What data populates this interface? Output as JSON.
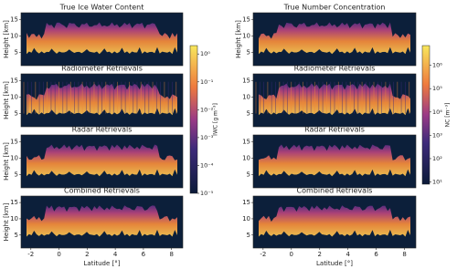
{
  "chart_data": [
    {
      "type": "heatmap",
      "title": "True Ice Water Content",
      "ylabel": "Height [km]",
      "xlim": [
        -2.7,
        8.8
      ],
      "ylim": [
        1,
        17
      ],
      "yticks": [
        5,
        10,
        15
      ]
    },
    {
      "type": "heatmap",
      "title": "True Number Concentration",
      "ylabel": "Height [km]",
      "xlim": [
        -2.7,
        8.8
      ],
      "ylim": [
        1,
        17
      ],
      "yticks": [
        5,
        10,
        15
      ]
    },
    {
      "type": "heatmap",
      "title": "Radiometer Retrievals",
      "ylabel": "Height [km]",
      "xlim": [
        -2.7,
        8.8
      ],
      "ylim": [
        1,
        17
      ],
      "yticks": [
        5,
        10,
        15
      ],
      "noise": true
    },
    {
      "type": "heatmap",
      "title": "Radiometer Retrievals",
      "xlim": [
        -2.7,
        8.8
      ],
      "ylim": [
        1,
        17
      ],
      "yticks": [
        5,
        10,
        15
      ],
      "noise": true
    },
    {
      "type": "heatmap",
      "title": "Radar Retrievals",
      "ylabel": "Height [km]",
      "xlim": [
        -2.7,
        8.8
      ],
      "ylim": [
        1,
        17
      ],
      "yticks": [
        5,
        10,
        15
      ]
    },
    {
      "type": "heatmap",
      "title": "Radar Retrievals",
      "xlim": [
        -2.7,
        8.8
      ],
      "ylim": [
        1,
        17
      ],
      "yticks": [
        5,
        10,
        15
      ]
    },
    {
      "type": "heatmap",
      "title": "Combined Retrievals",
      "ylabel": "Height [km]",
      "xlabel": "Latitude [°]",
      "xlim": [
        -2.7,
        8.8
      ],
      "ylim": [
        1,
        17
      ],
      "yticks": [
        5,
        10,
        15
      ],
      "xticks": [
        -2,
        0,
        2,
        4,
        6,
        8
      ]
    },
    {
      "type": "heatmap",
      "title": "Combined Retrievals",
      "xlabel": "Latitude [°]",
      "xlim": [
        -2.7,
        8.8
      ],
      "ylim": [
        1,
        17
      ],
      "yticks": [
        5,
        10,
        15
      ],
      "xticks": [
        -2,
        0,
        2,
        4,
        6,
        8
      ]
    },
    {
      "type": "colorbar",
      "label": "IWC [g m⁻³]",
      "log": true,
      "ylim": [
        1e-05,
        2
      ],
      "yticks": [
        {
          "value": 1e-05,
          "label": "10⁻⁵"
        },
        {
          "value": 0.0001,
          "label": "10⁻⁴"
        },
        {
          "value": 0.001,
          "label": "10⁻³"
        },
        {
          "value": 0.01,
          "label": "10⁻²"
        },
        {
          "value": 0.1,
          "label": "10⁻¹"
        },
        {
          "value": 1,
          "label": "10⁰"
        }
      ]
    },
    {
      "type": "colorbar",
      "label": "NC [m⁻³]",
      "log": true,
      "ylim": [
        8,
        7000000
      ],
      "yticks": [
        {
          "value": 10,
          "label": "10¹"
        },
        {
          "value": 100,
          "label": "10²"
        },
        {
          "value": 1000,
          "label": "10³"
        },
        {
          "value": 10000,
          "label": "10⁴"
        },
        {
          "value": 100000,
          "label": "10⁵"
        },
        {
          "value": 1000000,
          "label": "10⁶"
        }
      ]
    }
  ]
}
